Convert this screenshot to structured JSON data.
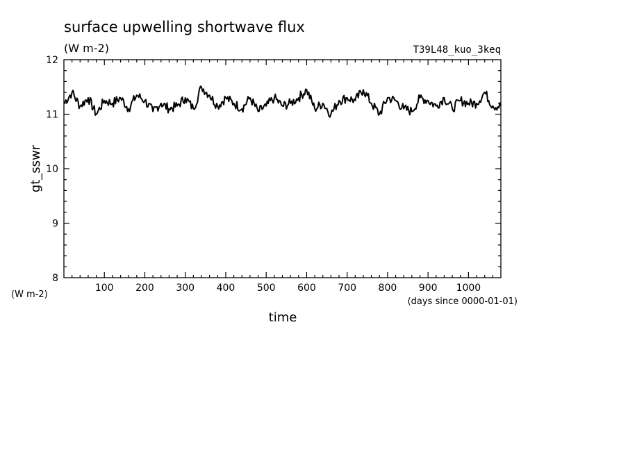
{
  "chart_data": {
    "type": "line",
    "title": "surface upwelling shortwave flux",
    "subtitle": "(W m-2)",
    "run_label": "T39L48_kuo_3keq",
    "xlabel": "time",
    "x_units": "(days since 0000-01-01)",
    "ylabel": "gt_sswr",
    "y_units": "(W m-2)",
    "xlim": [
      0,
      1080
    ],
    "ylim": [
      8,
      12
    ],
    "x_ticks": [
      100,
      200,
      300,
      400,
      500,
      600,
      700,
      800,
      900,
      1000
    ],
    "y_ticks": [
      8,
      9,
      10,
      11,
      12
    ],
    "grid": false,
    "line_color": "#000000",
    "series": [
      {
        "x": [
          0,
          20,
          40,
          60,
          80,
          100,
          120,
          140,
          160,
          180,
          200,
          220,
          240,
          260,
          280,
          300,
          320,
          340,
          360,
          380,
          400,
          420,
          440,
          460,
          480,
          500,
          520,
          540,
          560,
          580,
          600,
          620,
          640,
          660,
          680,
          700,
          720,
          740,
          760,
          780,
          800,
          820,
          840,
          860,
          880,
          900,
          920,
          940,
          960,
          980,
          1000,
          1020,
          1040,
          1060,
          1080
        ],
        "values": [
          11.2,
          11.4,
          11.15,
          11.3,
          11.0,
          11.25,
          11.2,
          11.3,
          11.1,
          11.35,
          11.25,
          11.05,
          11.2,
          11.1,
          11.15,
          11.3,
          11.1,
          11.5,
          11.35,
          11.15,
          11.3,
          11.2,
          11.1,
          11.3,
          11.05,
          11.15,
          11.3,
          11.15,
          11.2,
          11.3,
          11.45,
          11.1,
          11.2,
          11.0,
          11.25,
          11.3,
          11.25,
          11.45,
          11.2,
          11.0,
          11.3,
          11.25,
          11.1,
          11.05,
          11.3,
          11.25,
          11.15,
          11.3,
          11.1,
          11.25,
          11.2,
          11.2,
          11.4,
          11.15,
          11.15
        ]
      }
    ]
  }
}
